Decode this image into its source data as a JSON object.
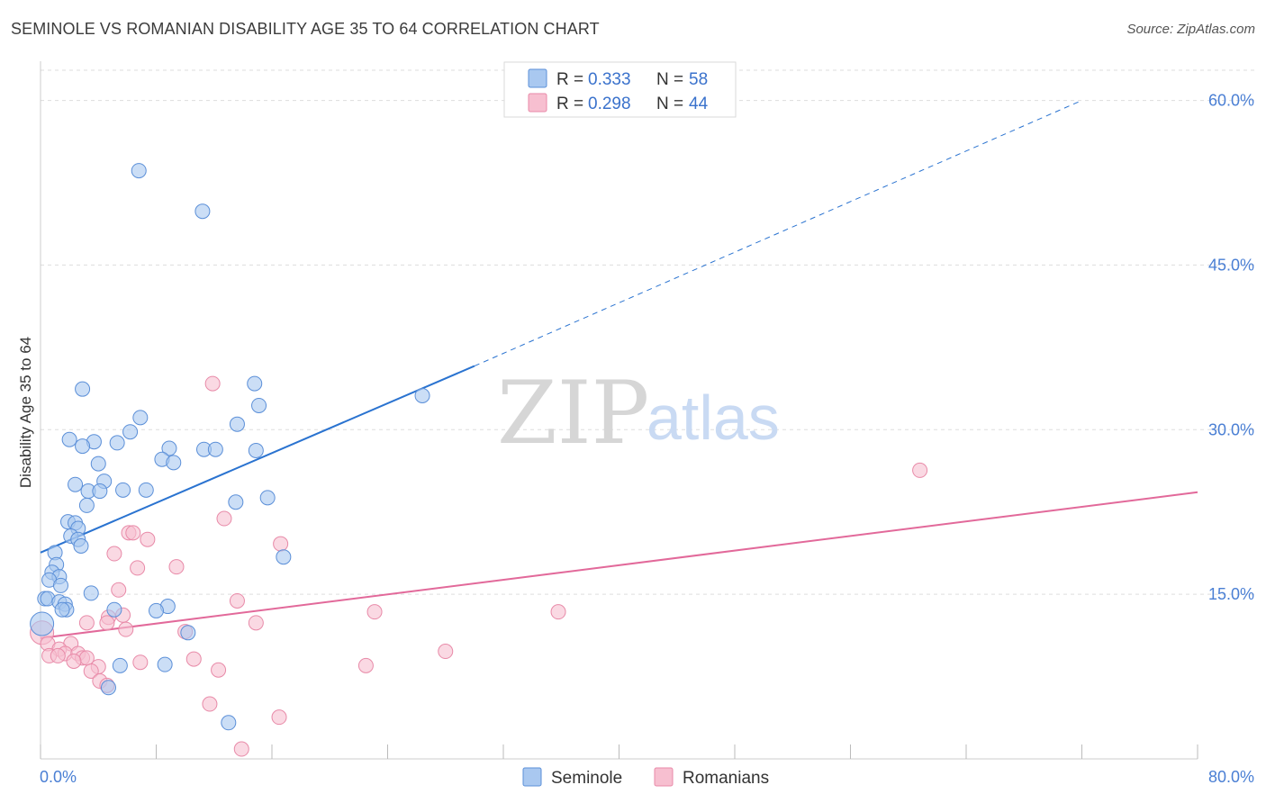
{
  "title": "SEMINOLE VS ROMANIAN DISABILITY AGE 35 TO 64 CORRELATION CHART",
  "source": "Source: ZipAtlas.com",
  "watermark": {
    "zip": "ZIP",
    "atlas": "atlas"
  },
  "colors": {
    "seminole_fill": "#a9c8f0",
    "seminole_stroke": "#5b8fd8",
    "seminole_line": "#2a73d0",
    "romanian_fill": "#f7bfd0",
    "romanian_stroke": "#e88aa8",
    "romanian_line": "#e2699a",
    "tick_text": "#4a7fd4",
    "grid": "#dddddd"
  },
  "legend": {
    "rows": [
      {
        "r_label": "R = ",
        "r_value": "0.333",
        "n_label": "N = ",
        "n_value": "58"
      },
      {
        "r_label": "R = ",
        "r_value": "0.298",
        "n_label": "N = ",
        "n_value": "44"
      }
    ]
  },
  "bottom_legend": [
    "Seminole",
    "Romanians"
  ],
  "chart_data": {
    "type": "scatter",
    "title": "SEMINOLE VS ROMANIAN DISABILITY AGE 35 TO 64 CORRELATION CHART",
    "xlabel": "",
    "ylabel": "Disability Age 35 to 64",
    "xlim": [
      0,
      80
    ],
    "ylim": [
      0,
      63
    ],
    "x_tick_labels": [
      "0.0%",
      "80.0%"
    ],
    "y_ticks": [
      15,
      30,
      45,
      60
    ],
    "y_tick_labels": [
      "15.0%",
      "30.0%",
      "45.0%",
      "60.0%"
    ],
    "grid": true,
    "series": [
      {
        "name": "Seminole",
        "R": 0.333,
        "N": 58,
        "trend": {
          "x0": 0,
          "y0": 18.8,
          "x1": 30,
          "y1": 35.8,
          "dashed_to_x": 72,
          "dashed_to_y": 60.0
        },
        "points": [
          [
            6.8,
            53.6
          ],
          [
            11.2,
            49.9
          ],
          [
            14.8,
            34.2
          ],
          [
            2.9,
            33.7
          ],
          [
            26.4,
            33.1
          ],
          [
            15.1,
            32.2
          ],
          [
            6.9,
            31.1
          ],
          [
            13.6,
            30.5
          ],
          [
            6.2,
            29.8
          ],
          [
            2.0,
            29.1
          ],
          [
            3.7,
            28.9
          ],
          [
            5.3,
            28.8
          ],
          [
            2.9,
            28.5
          ],
          [
            8.9,
            28.3
          ],
          [
            11.3,
            28.2
          ],
          [
            12.1,
            28.2
          ],
          [
            14.9,
            28.1
          ],
          [
            8.4,
            27.3
          ],
          [
            9.2,
            27.0
          ],
          [
            4.0,
            26.9
          ],
          [
            4.4,
            25.3
          ],
          [
            2.4,
            25.0
          ],
          [
            3.3,
            24.4
          ],
          [
            4.1,
            24.4
          ],
          [
            5.7,
            24.5
          ],
          [
            7.3,
            24.5
          ],
          [
            13.5,
            23.4
          ],
          [
            15.7,
            23.8
          ],
          [
            3.2,
            23.1
          ],
          [
            1.9,
            21.6
          ],
          [
            2.4,
            21.5
          ],
          [
            2.6,
            21.0
          ],
          [
            2.1,
            20.3
          ],
          [
            2.6,
            20.0
          ],
          [
            2.8,
            19.4
          ],
          [
            1.0,
            18.8
          ],
          [
            16.8,
            18.4
          ],
          [
            1.1,
            17.7
          ],
          [
            0.8,
            17.0
          ],
          [
            1.3,
            16.6
          ],
          [
            0.6,
            16.3
          ],
          [
            1.4,
            15.8
          ],
          [
            3.5,
            15.1
          ],
          [
            0.3,
            14.6
          ],
          [
            0.5,
            14.6
          ],
          [
            1.3,
            14.3
          ],
          [
            1.7,
            14.1
          ],
          [
            1.8,
            13.6
          ],
          [
            1.5,
            13.6
          ],
          [
            5.1,
            13.6
          ],
          [
            8.8,
            13.9
          ],
          [
            8.0,
            13.5
          ],
          [
            0.1,
            12.3
          ],
          [
            10.2,
            11.5
          ],
          [
            5.5,
            8.5
          ],
          [
            8.6,
            8.6
          ],
          [
            4.7,
            6.5
          ],
          [
            13.0,
            3.3
          ]
        ]
      },
      {
        "name": "Romanians",
        "R": 0.298,
        "N": 44,
        "trend": {
          "x0": 0,
          "y0": 11.0,
          "x1": 80,
          "y1": 24.3
        },
        "points": [
          [
            11.9,
            34.2
          ],
          [
            60.8,
            26.3
          ],
          [
            12.7,
            21.9
          ],
          [
            16.6,
            19.6
          ],
          [
            6.1,
            20.6
          ],
          [
            6.4,
            20.6
          ],
          [
            7.4,
            20.0
          ],
          [
            5.1,
            18.7
          ],
          [
            9.4,
            17.5
          ],
          [
            6.7,
            17.4
          ],
          [
            5.4,
            15.4
          ],
          [
            13.6,
            14.4
          ],
          [
            23.1,
            13.4
          ],
          [
            35.8,
            13.4
          ],
          [
            5.7,
            13.1
          ],
          [
            4.7,
            12.9
          ],
          [
            3.2,
            12.4
          ],
          [
            4.6,
            12.4
          ],
          [
            14.9,
            12.4
          ],
          [
            5.9,
            11.8
          ],
          [
            10.0,
            11.6
          ],
          [
            0.1,
            11.5
          ],
          [
            0.5,
            10.5
          ],
          [
            2.1,
            10.5
          ],
          [
            1.3,
            10.0
          ],
          [
            28.0,
            9.8
          ],
          [
            1.7,
            9.6
          ],
          [
            2.6,
            9.6
          ],
          [
            0.6,
            9.4
          ],
          [
            1.2,
            9.4
          ],
          [
            2.9,
            9.2
          ],
          [
            3.2,
            9.2
          ],
          [
            2.3,
            8.9
          ],
          [
            10.6,
            9.1
          ],
          [
            6.9,
            8.8
          ],
          [
            22.5,
            8.5
          ],
          [
            4.0,
            8.4
          ],
          [
            3.5,
            8.0
          ],
          [
            12.3,
            8.1
          ],
          [
            4.1,
            7.1
          ],
          [
            4.6,
            6.7
          ],
          [
            11.7,
            5.0
          ],
          [
            16.5,
            3.8
          ],
          [
            13.9,
            0.9
          ]
        ]
      }
    ]
  }
}
